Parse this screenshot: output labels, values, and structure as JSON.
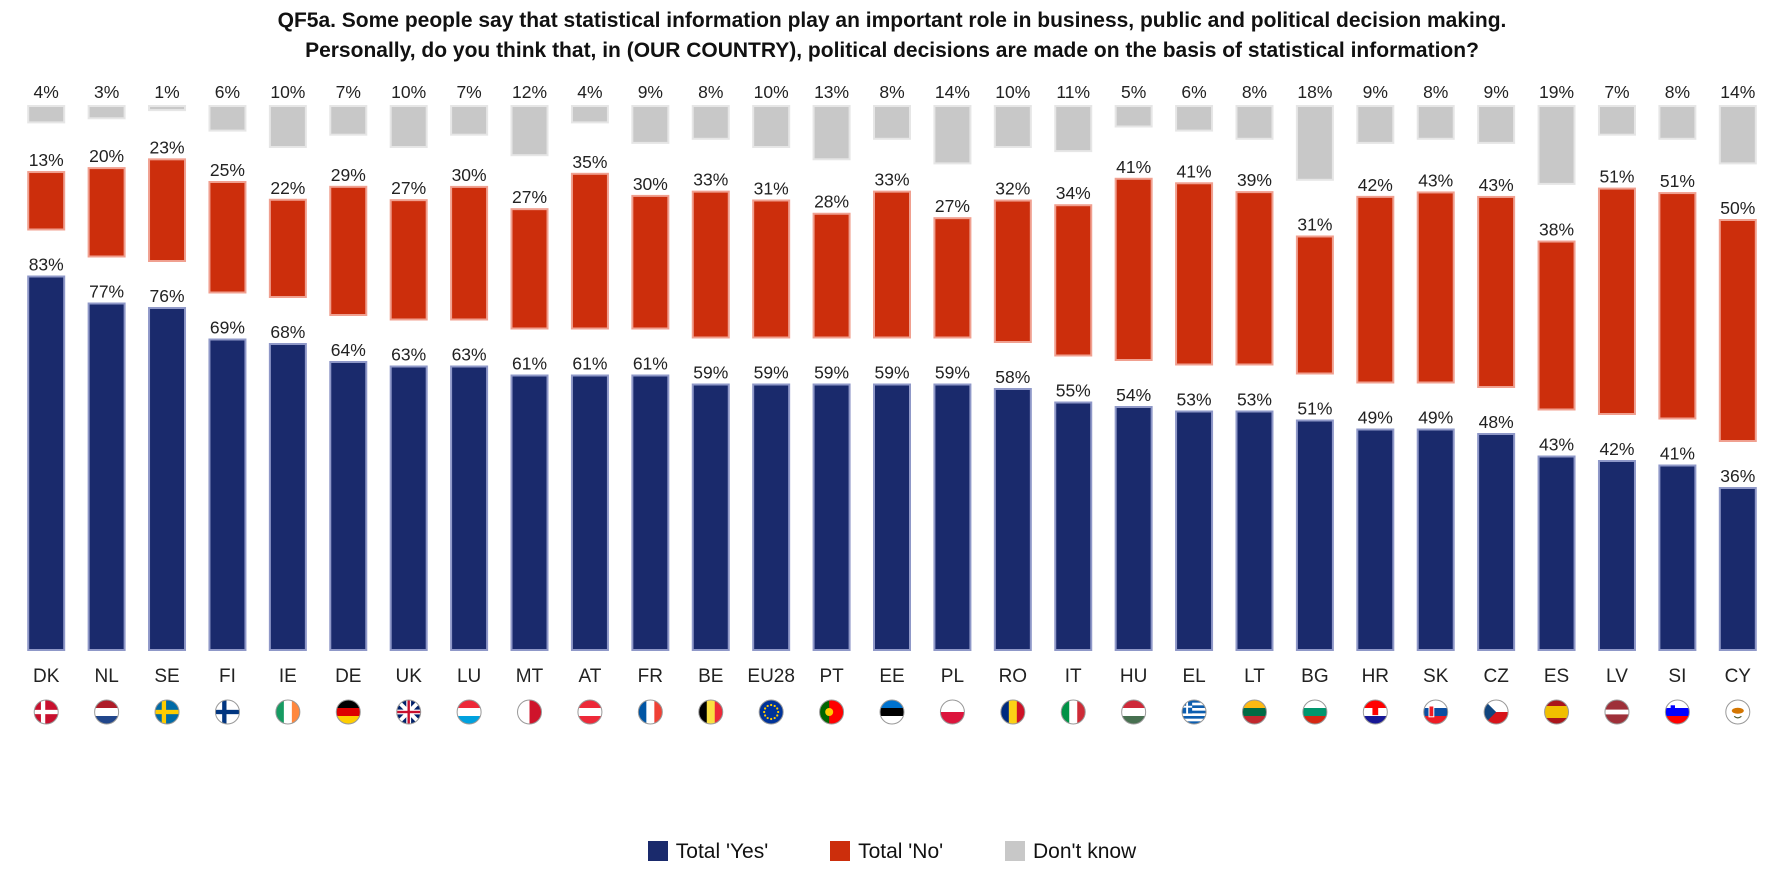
{
  "chart_data": {
    "type": "bar",
    "title_line1": "QF5a. Some people say that statistical information play an important role in business, public and political decision making.",
    "title_line2": "Personally, do you think that, in (OUR COUNTRY), political decisions are made on the basis of statistical information?",
    "categories": [
      "DK",
      "NL",
      "SE",
      "FI",
      "IE",
      "DE",
      "UK",
      "LU",
      "MT",
      "AT",
      "FR",
      "BE",
      "EU28",
      "PT",
      "EE",
      "PL",
      "RO",
      "IT",
      "HU",
      "EL",
      "LT",
      "BG",
      "HR",
      "SK",
      "CZ",
      "ES",
      "LV",
      "SI",
      "CY"
    ],
    "series": [
      {
        "name": "Total 'Yes'",
        "color": "#1a2a6c",
        "values": [
          83,
          77,
          76,
          69,
          68,
          64,
          63,
          63,
          61,
          61,
          61,
          59,
          59,
          59,
          59,
          59,
          58,
          55,
          54,
          53,
          53,
          51,
          49,
          49,
          48,
          43,
          42,
          41,
          36
        ]
      },
      {
        "name": "Total 'No'",
        "color": "#cc2e0c",
        "values": [
          13,
          20,
          23,
          25,
          22,
          29,
          27,
          30,
          27,
          35,
          30,
          33,
          31,
          28,
          33,
          27,
          32,
          34,
          41,
          41,
          39,
          31,
          42,
          43,
          43,
          38,
          51,
          51,
          50
        ]
      },
      {
        "name": "Don't know",
        "color": "#c8c8c8",
        "values": [
          4,
          3,
          1,
          6,
          10,
          7,
          10,
          7,
          12,
          4,
          9,
          8,
          10,
          13,
          8,
          14,
          10,
          11,
          5,
          6,
          8,
          18,
          9,
          8,
          9,
          19,
          7,
          8,
          14
        ]
      }
    ],
    "value_suffix": "%",
    "flag_icons": [
      "flag-dk-icon",
      "flag-nl-icon",
      "flag-se-icon",
      "flag-fi-icon",
      "flag-ie-icon",
      "flag-de-icon",
      "flag-uk-icon",
      "flag-lu-icon",
      "flag-mt-icon",
      "flag-at-icon",
      "flag-fr-icon",
      "flag-be-icon",
      "flag-eu-icon",
      "flag-pt-icon",
      "flag-ee-icon",
      "flag-pl-icon",
      "flag-ro-icon",
      "flag-it-icon",
      "flag-hu-icon",
      "flag-el-icon",
      "flag-lt-icon",
      "flag-bg-icon",
      "flag-hr-icon",
      "flag-sk-icon",
      "flag-cz-icon",
      "flag-es-icon",
      "flag-lv-icon",
      "flag-si-icon",
      "flag-cy-icon"
    ],
    "legend_position": "bottom",
    "grid": false
  }
}
